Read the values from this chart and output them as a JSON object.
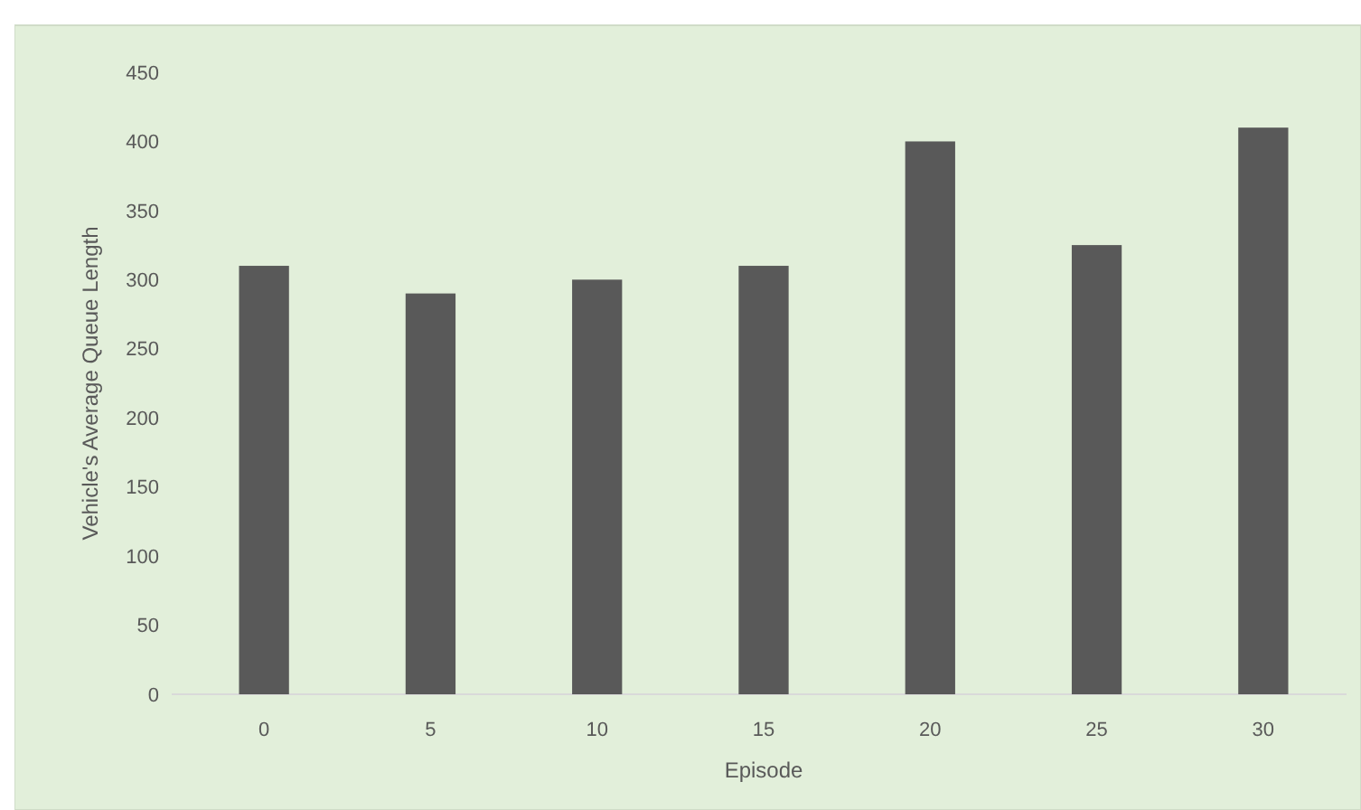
{
  "chart_data": {
    "type": "bar",
    "xlabel": "Episode",
    "ylabel": "Vehicle's Average Queue Length",
    "categories": [
      "0",
      "5",
      "10",
      "15",
      "20",
      "25",
      "30"
    ],
    "values": [
      310,
      290,
      300,
      310,
      400,
      325,
      410
    ],
    "color": "#595959",
    "ylim": [
      0,
      450
    ],
    "yticks": [
      0,
      50,
      100,
      150,
      200,
      250,
      300,
      350,
      400,
      450
    ],
    "grid": false
  }
}
